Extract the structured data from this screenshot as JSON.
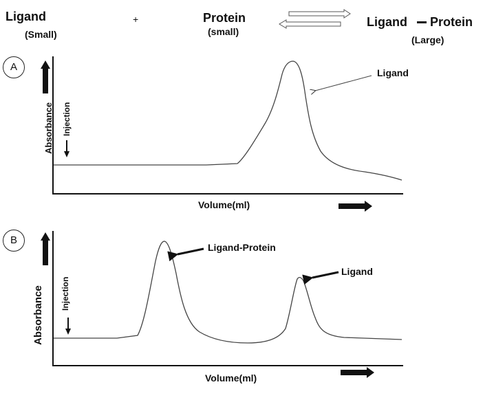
{
  "header": {
    "ligand": "Ligand",
    "ligand_size": "(Small)",
    "plus": "+",
    "protein": "Protein",
    "protein_size": "(small)",
    "complex_left": "Ligand",
    "complex_right": "Protein",
    "complex_size": "(Large)"
  },
  "panel_a": {
    "label": "A",
    "ylabel": "Absorbance",
    "injection": "Injection",
    "xlabel": "Volume(ml)",
    "peak_annotation": "Ligand"
  },
  "panel_b": {
    "label": "B",
    "ylabel": "Absorbance",
    "injection": "Injection",
    "xlabel": "Volume(ml)",
    "peak1_annotation": "Ligand-Protein",
    "peak2_annotation": "Ligand"
  }
}
